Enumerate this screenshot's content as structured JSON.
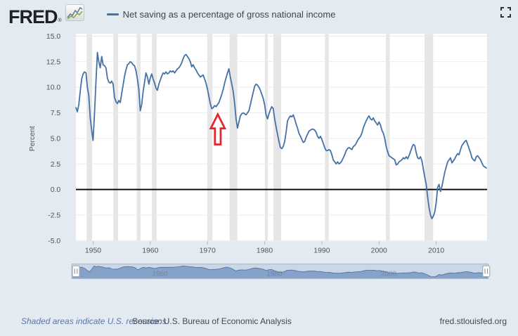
{
  "header": {
    "logo_text": "FRED",
    "logo_reg": "®",
    "logo_icon": "fred-sparkline-icon",
    "legend": {
      "label": "Net saving as a percentage of gross national income",
      "line_color": "#4572a7"
    },
    "fullscreen_icon": "fullscreen-expand-icon"
  },
  "chart_data": {
    "type": "line",
    "title": "",
    "ylabel": "Percent",
    "ylim": [
      -5,
      15
    ],
    "xlim": [
      1946.95,
      2018.95
    ],
    "grid": true,
    "legend_position": "top",
    "y_ticks": [
      15,
      12.5,
      10,
      7.5,
      5,
      2.5,
      0,
      -2.5,
      -5
    ],
    "y_tick_labels": [
      "15.0",
      "12.5",
      "10.0",
      "7.5",
      "5.0",
      "2.5",
      "0.0",
      "-2.5",
      "-5.0"
    ],
    "x_ticks": [
      1950,
      1960,
      1970,
      1980,
      1990,
      2000,
      2010
    ],
    "zero_line": {
      "show": true,
      "color": "#000000"
    },
    "colors": {
      "line": "#4572a7",
      "plot_bg": "#ffffff",
      "gridline": "#e9eaeb",
      "recession_band": "#e6e6e6",
      "tick_text": "#4d555e"
    },
    "series": [
      {
        "name": "Net saving as a percentage of gross national income",
        "color": "#4572a7",
        "x_start": 1947.0,
        "x_step": 0.25,
        "values": [
          8.0,
          7.6,
          8.3,
          9.6,
          10.8,
          11.3,
          11.5,
          11.4,
          10.0,
          9.2,
          7.0,
          5.8,
          4.8,
          7.5,
          10.5,
          13.4,
          12.5,
          11.9,
          13.0,
          12.2,
          12.1,
          11.9,
          10.9,
          10.5,
          10.4,
          10.6,
          10.3,
          9.0,
          8.6,
          8.4,
          8.7,
          8.5,
          9.4,
          10.2,
          11.1,
          11.7,
          12.2,
          12.3,
          12.5,
          12.4,
          12.2,
          12.1,
          11.6,
          10.8,
          9.8,
          7.7,
          8.3,
          9.6,
          10.5,
          11.4,
          11.0,
          10.3,
          10.9,
          11.3,
          10.8,
          10.4,
          9.9,
          9.7,
          10.3,
          10.7,
          11.1,
          11.4,
          11.3,
          11.5,
          11.3,
          11.4,
          11.6,
          11.5,
          11.6,
          11.4,
          11.6,
          11.8,
          11.9,
          12.1,
          12.4,
          12.8,
          13.1,
          13.2,
          13.0,
          12.8,
          12.5,
          12.0,
          12.2,
          11.9,
          11.7,
          11.4,
          11.2,
          11.0,
          11.1,
          11.2,
          10.8,
          10.4,
          9.8,
          9.1,
          8.4,
          7.9,
          8.0,
          8.2,
          8.1,
          8.3,
          8.5,
          8.9,
          9.3,
          9.8,
          10.4,
          10.9,
          11.4,
          11.8,
          11.0,
          10.3,
          9.6,
          8.4,
          6.9,
          6.0,
          6.6,
          7.2,
          7.4,
          7.5,
          7.4,
          7.3,
          7.5,
          7.7,
          8.3,
          8.9,
          9.5,
          10.1,
          10.3,
          10.2,
          10.0,
          9.7,
          9.3,
          8.9,
          8.3,
          7.3,
          6.9,
          7.4,
          7.8,
          8.1,
          7.9,
          6.9,
          6.1,
          5.4,
          4.7,
          4.1,
          4.0,
          4.2,
          4.7,
          5.6,
          6.7,
          7.0,
          7.2,
          7.1,
          7.3,
          6.9,
          6.4,
          6.0,
          5.5,
          5.2,
          4.9,
          4.6,
          4.7,
          5.1,
          5.4,
          5.7,
          5.8,
          5.9,
          5.9,
          5.8,
          5.6,
          5.2,
          5.0,
          5.2,
          4.9,
          4.5,
          4.1,
          3.8,
          3.8,
          3.9,
          3.8,
          3.4,
          2.9,
          2.7,
          2.5,
          2.7,
          2.5,
          2.6,
          2.8,
          3.1,
          3.4,
          3.8,
          4.0,
          4.1,
          4.0,
          3.9,
          4.2,
          4.3,
          4.5,
          4.8,
          5.0,
          5.2,
          5.5,
          6.0,
          6.4,
          6.7,
          7.0,
          7.2,
          6.9,
          6.8,
          7.0,
          6.7,
          6.5,
          6.3,
          6.6,
          6.3,
          5.8,
          5.5,
          5.0,
          4.2,
          3.7,
          3.3,
          3.2,
          3.1,
          3.0,
          2.9,
          2.4,
          2.5,
          2.7,
          2.8,
          2.9,
          3.1,
          3.0,
          3.2,
          3.0,
          3.3,
          3.7,
          4.1,
          4.4,
          4.3,
          3.6,
          3.1,
          3.0,
          3.2,
          2.8,
          2.0,
          1.2,
          0.5,
          -0.7,
          -1.8,
          -2.5,
          -2.85,
          -2.6,
          -2.2,
          -1.3,
          0.2,
          0.5,
          -0.2,
          0.3,
          1.0,
          1.7,
          2.2,
          2.7,
          2.9,
          3.1,
          2.6,
          2.8,
          3.0,
          3.3,
          3.5,
          3.4,
          3.9,
          4.3,
          4.5,
          4.7,
          4.8,
          4.4,
          4.0,
          3.6,
          3.1,
          2.9,
          2.8,
          3.2,
          3.3,
          3.1,
          2.9,
          2.6,
          2.3,
          2.2,
          2.1
        ]
      }
    ],
    "recessions": [
      [
        1948.87,
        1949.83
      ],
      [
        1953.54,
        1954.37
      ],
      [
        1957.63,
        1958.29
      ],
      [
        1960.29,
        1961.12
      ],
      [
        1969.96,
        1970.87
      ],
      [
        1973.87,
        1975.21
      ],
      [
        1980.04,
        1980.54
      ],
      [
        1981.54,
        1982.87
      ],
      [
        1990.54,
        1991.21
      ],
      [
        2001.21,
        2001.87
      ],
      [
        2007.96,
        2009.46
      ]
    ],
    "annotation_arrow": {
      "shape": "up-arrow",
      "points_at_year": 1971.8,
      "tip_value": 7.35,
      "base_value": 4.4,
      "outline_color": "#e8242b",
      "fill_color": "#ffffff"
    }
  },
  "slider": {
    "decade_labels": [
      "1960",
      "1980",
      "2000"
    ],
    "decade_years": [
      1960,
      1980,
      2000
    ],
    "track_color": "#c9d7e9",
    "area_fill": "#7e9cc5",
    "area_stroke": "#54759d",
    "outline_color": "#a3b2ca",
    "handle_left": "range-handle",
    "handle_right": "range-handle"
  },
  "footer": {
    "recession_note": "Shaded areas indicate U.S. recessions",
    "source": "Source: U.S. Bureau of Economic Analysis",
    "site": "fred.stlouisfed.org"
  }
}
